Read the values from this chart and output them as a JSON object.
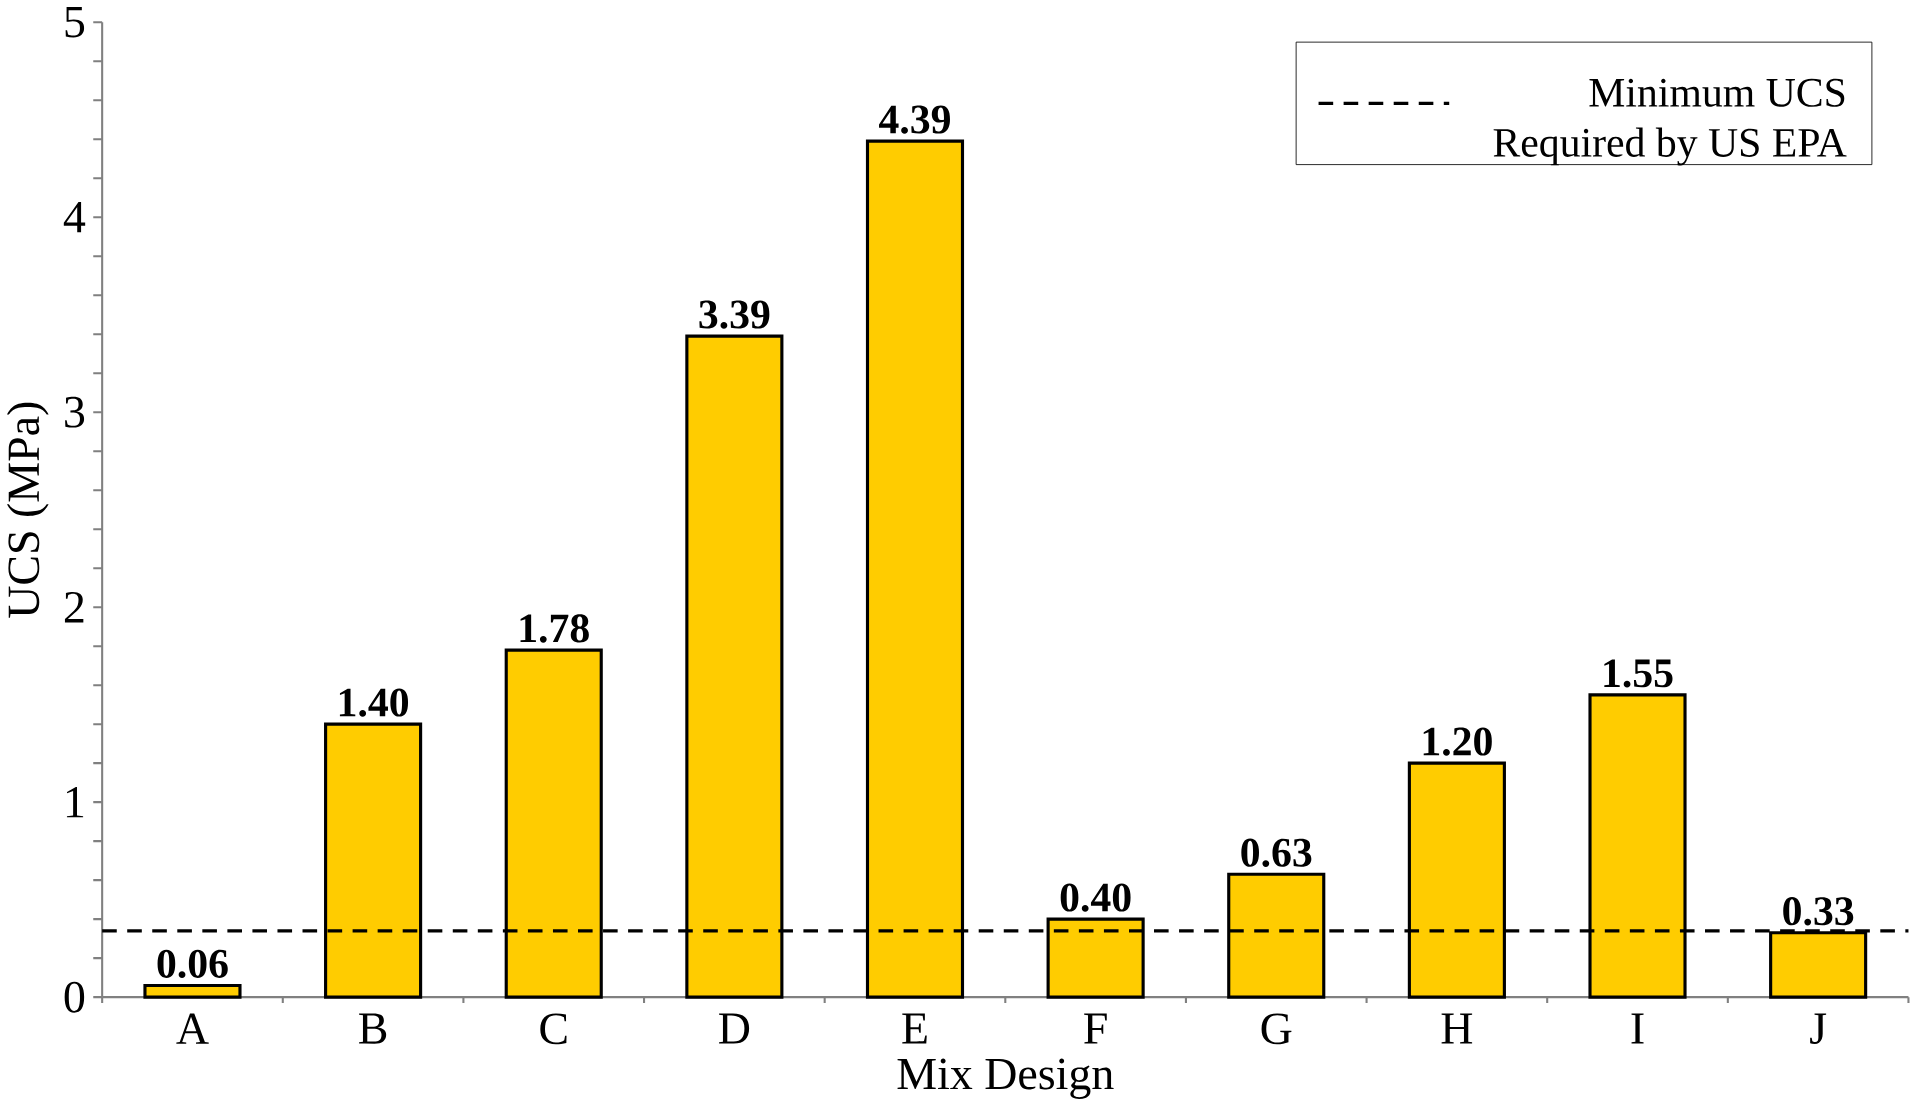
{
  "chart_data": {
    "type": "bar",
    "xlabel": "Mix Design",
    "ylabel": "UCS (MPa)",
    "categories": [
      "A",
      "B",
      "C",
      "D",
      "E",
      "F",
      "G",
      "H",
      "I",
      "J"
    ],
    "values": [
      0.06,
      1.4,
      1.78,
      3.39,
      4.39,
      0.4,
      0.63,
      1.2,
      1.55,
      0.33
    ],
    "value_labels": [
      "0.06",
      "1.40",
      "1.78",
      "3.39",
      "4.39",
      "0.40",
      "0.63",
      "1.20",
      "1.55",
      "0.33"
    ],
    "color": "#ffcc00",
    "ylim": [
      0,
      5
    ],
    "yticks": [
      0,
      {
        "value": 0.2,
        "label": null
      },
      {
        "value": 0.4,
        "label": null
      },
      {
        "value": 0.6,
        "label": null
      },
      {
        "value": 0.8,
        "label": null
      },
      1,
      {
        "value": 1.2,
        "label": null
      },
      {
        "value": 1.4,
        "label": null
      },
      {
        "value": 1.6,
        "label": null
      },
      {
        "value": 1.8,
        "label": null
      },
      2,
      {
        "value": 2.2,
        "label": null
      },
      {
        "value": 2.4,
        "label": null
      },
      {
        "value": 2.6,
        "label": null
      },
      {
        "value": 2.8,
        "label": null
      },
      3,
      {
        "value": 3.2,
        "label": null
      },
      {
        "value": 3.4,
        "label": null
      },
      {
        "value": 3.6,
        "label": null
      },
      {
        "value": 3.8,
        "label": null
      },
      4,
      {
        "value": 4.2,
        "label": null
      },
      {
        "value": 4.4,
        "label": null
      },
      {
        "value": 4.6,
        "label": null
      },
      {
        "value": 4.8,
        "label": null
      },
      5
    ],
    "ref_lines": [
      {
        "axis": "y",
        "value": 0.34,
        "label": "Minimum UCS Required by US EPA",
        "color": "#000000",
        "line_style": "dashed"
      }
    ],
    "legend": "top right",
    "grid": false
  }
}
